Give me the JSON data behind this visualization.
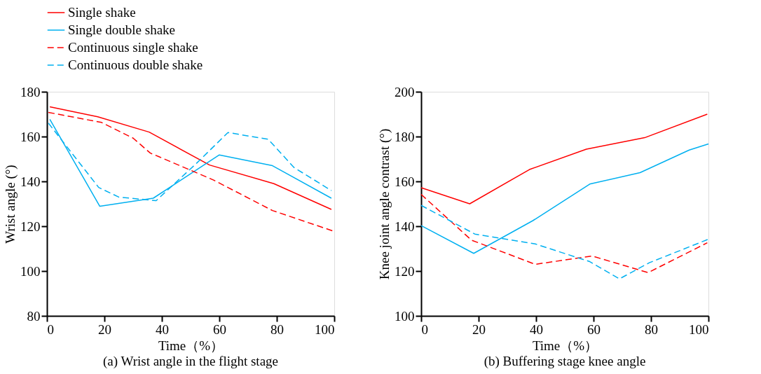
{
  "chart_data": [
    {
      "type": "line",
      "title": "(a)  Wrist angle in the flight stage",
      "xlabel": "Time（%）",
      "ylabel": "Wrist angle (°)",
      "xlim": [
        0,
        100
      ],
      "xticks": [
        0,
        20,
        40,
        60,
        80,
        100
      ],
      "ylim": [
        80,
        180
      ],
      "yticks": [
        80,
        100,
        120,
        140,
        160,
        180
      ],
      "grid": false,
      "legend": "top",
      "marker": "none",
      "series": [
        {
          "name": "Single shake",
          "color": "#ff0000",
          "line_style": "solid",
          "x": [
            1,
            17.7,
            35.6,
            56.6,
            79,
            99
          ],
          "values": [
            173.3,
            168.8,
            162,
            147.3,
            139,
            127.5
          ]
        },
        {
          "name": "Single double shake",
          "color": "#00b0f0",
          "line_style": "solid",
          "x": [
            1,
            18.4,
            37,
            60,
            78.5,
            99
          ],
          "values": [
            167.7,
            128.9,
            132.5,
            151.8,
            147,
            132.5
          ]
        },
        {
          "name": "Continuous single shake",
          "color": "#ff0000",
          "line_style": "dashed",
          "x": [
            0.5,
            19,
            30,
            36,
            39,
            58,
            78.5,
            100
          ],
          "values": [
            170.8,
            166.3,
            159.3,
            152.6,
            151,
            140.6,
            127,
            117.7
          ]
        },
        {
          "name": "Continuous double shake",
          "color": "#00b0f0",
          "line_style": "dashed",
          "x": [
            0.5,
            18,
            25,
            38,
            52,
            63,
            77,
            86,
            99
          ],
          "values": [
            166,
            137.3,
            133,
            131.4,
            148,
            161.8,
            158.8,
            146.2,
            135.9
          ]
        }
      ]
    },
    {
      "type": "line",
      "title": "(b)  Buffering stage knee angle",
      "xlabel": "Time（%）",
      "ylabel": "Knee joint angle contrast (°)",
      "xlim": [
        0,
        100
      ],
      "xticks": [
        0,
        20,
        40,
        60,
        80,
        100
      ],
      "ylim": [
        100,
        200
      ],
      "yticks": [
        100,
        120,
        140,
        160,
        180,
        200
      ],
      "grid": false,
      "legend": "top",
      "marker": "none",
      "series": [
        {
          "name": "Single shake",
          "color": "#ff0000",
          "line_style": "solid",
          "x": [
            0,
            16.9,
            37.7,
            57.5,
            77.8,
            99.6
          ],
          "values": [
            157.2,
            150,
            165.3,
            174.4,
            179.5,
            190
          ]
        },
        {
          "name": "Single double shake",
          "color": "#00b0f0",
          "line_style": "solid",
          "x": [
            0,
            18.3,
            38.9,
            58.7,
            76.2,
            93.3,
            100
          ],
          "values": [
            140.3,
            127.9,
            142.5,
            158.8,
            163.9,
            174,
            176.7
          ]
        },
        {
          "name": "Continuous single shake",
          "color": "#ff0000",
          "line_style": "dashed",
          "x": [
            0,
            17.5,
            39.7,
            59.5,
            79,
            99.6
          ],
          "values": [
            154.2,
            133.8,
            123,
            126.7,
            119.3,
            132.6
          ]
        },
        {
          "name": "Continuous double shake",
          "color": "#00b0f0",
          "line_style": "dashed",
          "x": [
            0,
            18.7,
            39.7,
            58.7,
            69,
            79.4,
            100
          ],
          "values": [
            149.3,
            136.5,
            132.1,
            124.2,
            116.5,
            123.7,
            134.2
          ]
        }
      ]
    }
  ]
}
